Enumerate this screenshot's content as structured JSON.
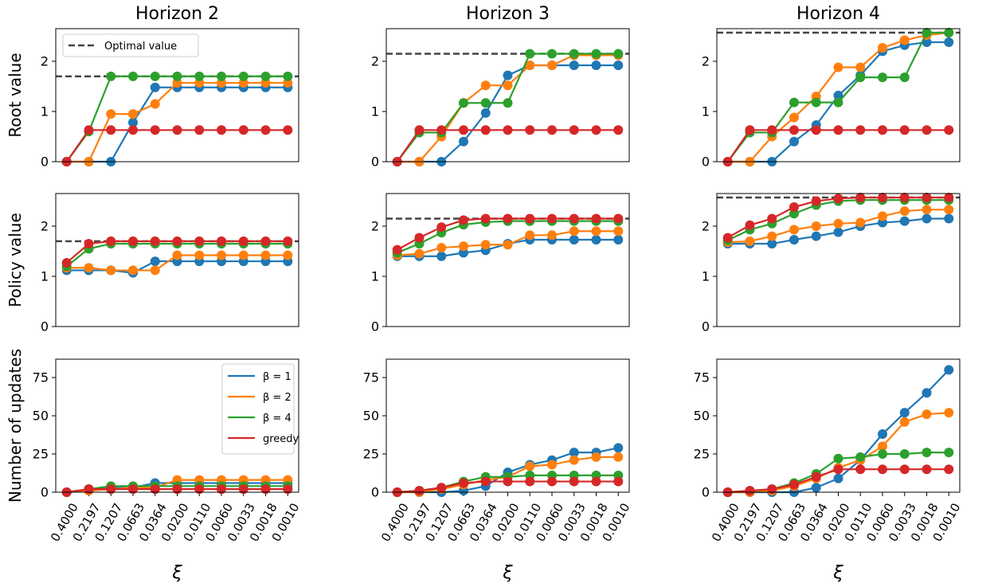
{
  "x_ticks": [
    "0.4000",
    "0.2197",
    "0.1207",
    "0.0663",
    "0.0364",
    "0.0200",
    "0.0110",
    "0.0060",
    "0.0033",
    "0.0018",
    "0.0010"
  ],
  "column_titles": [
    "Horizon 2",
    "Horizon 3",
    "Horizon 4"
  ],
  "row_labels": [
    "Root value",
    "Policy value",
    "Number of updates"
  ],
  "xlabel": "ξ",
  "legend_optimal": "Optimal value",
  "series_meta": [
    {
      "name": "β = 1",
      "color": "#1f77b4"
    },
    {
      "name": "β = 2",
      "color": "#ff7f0e"
    },
    {
      "name": "β = 4",
      "color": "#2ca02c"
    },
    {
      "name": "greedy",
      "color": "#d62728"
    }
  ],
  "optimal_color": "#444444",
  "chart_data": [
    {
      "type": "line",
      "row": 0,
      "col": 0,
      "ylim": [
        0,
        2.65
      ],
      "yticks": [
        0,
        1,
        2
      ],
      "optimal": 1.7,
      "series": [
        {
          "values": [
            0,
            0,
            0,
            0.78,
            1.48,
            1.48,
            1.48,
            1.48,
            1.48,
            1.48,
            1.48
          ]
        },
        {
          "values": [
            0,
            0,
            0.95,
            0.95,
            1.15,
            1.57,
            1.57,
            1.57,
            1.57,
            1.57,
            1.57
          ]
        },
        {
          "values": [
            0,
            0.6,
            1.7,
            1.7,
            1.7,
            1.7,
            1.7,
            1.7,
            1.7,
            1.7,
            1.7
          ]
        },
        {
          "values": [
            0,
            0.63,
            0.63,
            0.63,
            0.63,
            0.63,
            0.63,
            0.63,
            0.63,
            0.63,
            0.63
          ]
        }
      ]
    },
    {
      "type": "line",
      "row": 0,
      "col": 1,
      "ylim": [
        0,
        2.65
      ],
      "yticks": [
        0,
        1,
        2
      ],
      "optimal": 2.15,
      "series": [
        {
          "values": [
            0,
            0,
            0,
            0.4,
            0.97,
            1.72,
            1.92,
            1.92,
            1.92,
            1.92,
            1.92
          ]
        },
        {
          "values": [
            0,
            0,
            0.5,
            1.17,
            1.52,
            1.52,
            1.92,
            1.92,
            2.12,
            2.12,
            2.12
          ]
        },
        {
          "values": [
            0,
            0.58,
            0.58,
            1.17,
            1.17,
            1.17,
            2.15,
            2.15,
            2.15,
            2.15,
            2.15
          ]
        },
        {
          "values": [
            0,
            0.63,
            0.63,
            0.63,
            0.63,
            0.63,
            0.63,
            0.63,
            0.63,
            0.63,
            0.63
          ]
        }
      ]
    },
    {
      "type": "line",
      "row": 0,
      "col": 2,
      "ylim": [
        0,
        2.65
      ],
      "yticks": [
        0,
        1,
        2
      ],
      "optimal": 2.57,
      "series": [
        {
          "values": [
            0,
            0,
            0,
            0.4,
            0.73,
            1.32,
            1.72,
            2.2,
            2.32,
            2.38,
            2.38
          ]
        },
        {
          "values": [
            0,
            0,
            0.5,
            0.88,
            1.3,
            1.88,
            1.88,
            2.27,
            2.42,
            2.52,
            2.57
          ]
        },
        {
          "values": [
            0,
            0.58,
            0.58,
            1.18,
            1.18,
            1.18,
            1.68,
            1.68,
            1.68,
            2.57,
            2.57
          ]
        },
        {
          "values": [
            0,
            0.63,
            0.63,
            0.63,
            0.63,
            0.63,
            0.63,
            0.63,
            0.63,
            0.63,
            0.63
          ]
        }
      ]
    },
    {
      "type": "line",
      "row": 1,
      "col": 0,
      "ylim": [
        0,
        2.65
      ],
      "yticks": [
        0,
        1,
        2
      ],
      "optimal": 1.7,
      "series": [
        {
          "values": [
            1.12,
            1.12,
            1.12,
            1.07,
            1.3,
            1.3,
            1.3,
            1.3,
            1.3,
            1.3,
            1.3
          ]
        },
        {
          "values": [
            1.17,
            1.17,
            1.12,
            1.12,
            1.12,
            1.42,
            1.42,
            1.42,
            1.42,
            1.42,
            1.42
          ]
        },
        {
          "values": [
            1.2,
            1.55,
            1.65,
            1.65,
            1.65,
            1.65,
            1.65,
            1.65,
            1.65,
            1.65,
            1.65
          ]
        },
        {
          "values": [
            1.27,
            1.65,
            1.7,
            1.7,
            1.7,
            1.7,
            1.7,
            1.7,
            1.7,
            1.7,
            1.7
          ]
        }
      ]
    },
    {
      "type": "line",
      "row": 1,
      "col": 1,
      "ylim": [
        0,
        2.65
      ],
      "yticks": [
        0,
        1,
        2
      ],
      "optimal": 2.15,
      "series": [
        {
          "values": [
            1.4,
            1.4,
            1.4,
            1.47,
            1.52,
            1.65,
            1.73,
            1.73,
            1.73,
            1.73,
            1.73
          ]
        },
        {
          "values": [
            1.42,
            1.45,
            1.57,
            1.6,
            1.63,
            1.63,
            1.82,
            1.82,
            1.9,
            1.9,
            1.9
          ]
        },
        {
          "values": [
            1.47,
            1.65,
            1.87,
            2.03,
            2.08,
            2.1,
            2.1,
            2.1,
            2.1,
            2.1,
            2.1
          ]
        },
        {
          "values": [
            1.53,
            1.77,
            1.98,
            2.12,
            2.15,
            2.15,
            2.15,
            2.15,
            2.15,
            2.15,
            2.15
          ]
        }
      ]
    },
    {
      "type": "line",
      "row": 1,
      "col": 2,
      "ylim": [
        0,
        2.65
      ],
      "yticks": [
        0,
        1,
        2
      ],
      "optimal": 2.57,
      "series": [
        {
          "values": [
            1.65,
            1.65,
            1.65,
            1.73,
            1.8,
            1.88,
            2.0,
            2.07,
            2.1,
            2.15,
            2.15
          ]
        },
        {
          "values": [
            1.68,
            1.7,
            1.8,
            1.93,
            2.0,
            2.05,
            2.07,
            2.2,
            2.3,
            2.33,
            2.33
          ]
        },
        {
          "values": [
            1.72,
            1.93,
            2.05,
            2.25,
            2.42,
            2.5,
            2.52,
            2.52,
            2.52,
            2.52,
            2.52
          ]
        },
        {
          "values": [
            1.77,
            2.02,
            2.15,
            2.38,
            2.5,
            2.55,
            2.57,
            2.57,
            2.57,
            2.57,
            2.57
          ]
        }
      ]
    },
    {
      "type": "line",
      "row": 2,
      "col": 0,
      "ylim": [
        0,
        87
      ],
      "yticks": [
        0,
        25,
        50,
        75
      ],
      "series": [
        {
          "values": [
            0,
            2,
            3,
            3,
            6,
            6,
            6,
            6,
            6,
            6,
            6
          ]
        },
        {
          "values": [
            0,
            1,
            2,
            3,
            3,
            8,
            8,
            8,
            8,
            8,
            8
          ]
        },
        {
          "values": [
            0,
            2,
            4,
            4,
            4,
            4,
            4,
            4,
            4,
            4,
            4
          ]
        },
        {
          "values": [
            0,
            2,
            2,
            2,
            2,
            2,
            2,
            2,
            2,
            2,
            2
          ]
        }
      ]
    },
    {
      "type": "line",
      "row": 2,
      "col": 1,
      "ylim": [
        0,
        87
      ],
      "yticks": [
        0,
        25,
        50,
        75
      ],
      "series": [
        {
          "values": [
            0,
            0,
            0,
            1,
            4,
            13,
            18,
            21,
            26,
            26,
            29
          ]
        },
        {
          "values": [
            0,
            0,
            2,
            5,
            8,
            10,
            17,
            18,
            21,
            23,
            23
          ]
        },
        {
          "values": [
            0,
            1,
            3,
            7,
            10,
            10,
            11,
            11,
            11,
            11,
            11
          ]
        },
        {
          "values": [
            0,
            1,
            3,
            6,
            7,
            7,
            7,
            7,
            7,
            7,
            7
          ]
        }
      ]
    },
    {
      "type": "line",
      "row": 2,
      "col": 2,
      "ylim": [
        0,
        87
      ],
      "yticks": [
        0,
        25,
        50,
        75
      ],
      "series": [
        {
          "values": [
            0,
            0,
            0,
            0,
            3,
            9,
            21,
            38,
            52,
            65,
            80
          ]
        },
        {
          "values": [
            0,
            0,
            1,
            4,
            9,
            16,
            21,
            30,
            46,
            51,
            52
          ]
        },
        {
          "values": [
            0,
            1,
            2,
            6,
            12,
            22,
            23,
            25,
            25,
            26,
            26
          ]
        },
        {
          "values": [
            0,
            1,
            2,
            5,
            10,
            15,
            15,
            15,
            15,
            15,
            15
          ]
        }
      ]
    }
  ]
}
